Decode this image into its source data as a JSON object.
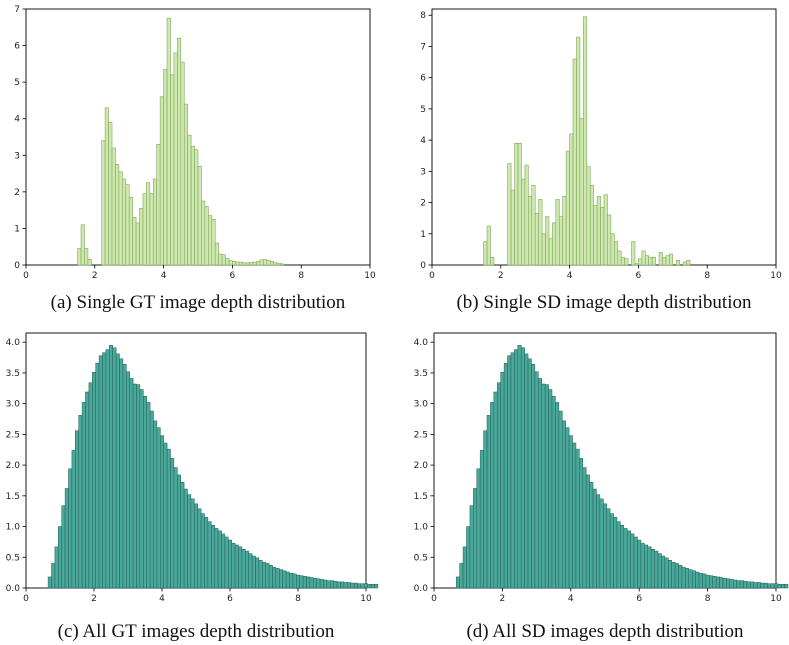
{
  "chart_data": [
    {
      "id": "a",
      "type": "bar",
      "caption": "(a) Single GT image depth distribution",
      "xlim": [
        0,
        10
      ],
      "ylim": [
        0,
        7
      ],
      "xticks": [
        "0",
        "2",
        "4",
        "6",
        "8",
        "10"
      ],
      "yticks": [
        "0",
        "1",
        "2",
        "3",
        "4",
        "5",
        "6",
        "7"
      ],
      "bin_start": 1.5,
      "bin_width": 0.1,
      "values": [
        0.45,
        1.1,
        0.45,
        0.15,
        0,
        0,
        0,
        3.4,
        4.3,
        3.9,
        3.2,
        2.75,
        2.55,
        2.35,
        2.2,
        1.85,
        1.3,
        1.15,
        1.55,
        1.95,
        2.25,
        1.95,
        2.35,
        3.3,
        4.6,
        5.35,
        6.75,
        5.2,
        5.8,
        6.2,
        5.55,
        4.4,
        3.55,
        3.25,
        3.15,
        2.7,
        1.75,
        1.6,
        1.35,
        1.25,
        0.6,
        0.3,
        0.28,
        0.18,
        0.12,
        0.1,
        0.08,
        0.08,
        0.06,
        0.06,
        0.07,
        0.08,
        0.1,
        0.14,
        0.15,
        0.12,
        0.1,
        0.06,
        0.05,
        0.03
      ],
      "color": "#cfe8b0"
    },
    {
      "id": "b",
      "type": "bar",
      "caption": "(b) Single SD image depth distribution",
      "xlim": [
        0,
        10
      ],
      "ylim": [
        0,
        8.2
      ],
      "xticks": [
        "0",
        "2",
        "4",
        "6",
        "8",
        "10"
      ],
      "yticks": [
        "0",
        "1",
        "2",
        "3",
        "4",
        "5",
        "6",
        "7",
        "8"
      ],
      "bin_start": 1.5,
      "bin_width": 0.1,
      "values": [
        0.75,
        1.25,
        0.25,
        0,
        0,
        0,
        0,
        3.25,
        2.4,
        3.9,
        3.9,
        2.75,
        3.2,
        2.2,
        2.55,
        1.65,
        2.1,
        1.0,
        1.55,
        0.85,
        1.35,
        2.1,
        1.55,
        2.2,
        3.65,
        4.2,
        6.6,
        7.3,
        4.7,
        7.95,
        3.15,
        2.55,
        1.9,
        2.2,
        1.85,
        2.25,
        1.6,
        1.0,
        0.75,
        0.45,
        0.25,
        0.2,
        0,
        0.75,
        0.05,
        0.2,
        0.45,
        0.3,
        0.25,
        0.25,
        0,
        0.4,
        0.25,
        0.3,
        0.35,
        0,
        0.15,
        0,
        0.1,
        0.15
      ],
      "color": "#cfe8b0"
    },
    {
      "id": "c",
      "type": "bar",
      "caption": "(c) All GT images depth distribution",
      "xlim": [
        0,
        10
      ],
      "ylim": [
        0,
        4.15
      ],
      "xticks": [
        "0",
        "2",
        "4",
        "6",
        "8",
        "10"
      ],
      "yticks": [
        "0.0",
        "0.5",
        "1.0",
        "1.5",
        "2.0",
        "2.5",
        "3.0",
        "3.5",
        "4.0"
      ],
      "bin_start": 0.65,
      "bin_width": 0.1,
      "values": [
        0.18,
        0.4,
        0.67,
        1.0,
        1.34,
        1.62,
        1.94,
        2.24,
        2.56,
        2.81,
        3.02,
        3.19,
        3.34,
        3.51,
        3.66,
        3.78,
        3.83,
        3.88,
        3.95,
        3.91,
        3.81,
        3.73,
        3.64,
        3.52,
        3.41,
        3.32,
        3.31,
        3.23,
        3.12,
        3.02,
        2.88,
        2.72,
        2.61,
        2.48,
        2.36,
        2.26,
        2.11,
        1.96,
        1.84,
        1.72,
        1.61,
        1.52,
        1.45,
        1.37,
        1.29,
        1.21,
        1.15,
        1.08,
        1.02,
        0.97,
        0.93,
        0.88,
        0.83,
        0.78,
        0.73,
        0.7,
        0.67,
        0.63,
        0.6,
        0.56,
        0.52,
        0.49,
        0.45,
        0.42,
        0.4,
        0.37,
        0.34,
        0.32,
        0.3,
        0.28,
        0.26,
        0.24,
        0.23,
        0.21,
        0.2,
        0.19,
        0.18,
        0.17,
        0.16,
        0.15,
        0.14,
        0.13,
        0.12,
        0.12,
        0.11,
        0.1,
        0.1,
        0.09,
        0.09,
        0.08,
        0.08,
        0.07,
        0.07,
        0.07,
        0.06,
        0.06,
        0.06
      ],
      "color": "#4aa89a"
    },
    {
      "id": "d",
      "type": "bar",
      "caption": "(d) All SD images depth distribution",
      "xlim": [
        0,
        10
      ],
      "ylim": [
        0,
        4.15
      ],
      "xticks": [
        "0",
        "2",
        "4",
        "6",
        "8",
        "10"
      ],
      "yticks": [
        "0.0",
        "0.5",
        "1.0",
        "1.5",
        "2.0",
        "2.5",
        "3.0",
        "3.5",
        "4.0"
      ],
      "bin_start": 0.65,
      "bin_width": 0.1,
      "values": [
        0.18,
        0.4,
        0.67,
        1.0,
        1.34,
        1.62,
        1.94,
        2.24,
        2.56,
        2.81,
        3.02,
        3.19,
        3.34,
        3.51,
        3.66,
        3.78,
        3.83,
        3.88,
        3.95,
        3.91,
        3.81,
        3.73,
        3.64,
        3.52,
        3.41,
        3.32,
        3.31,
        3.23,
        3.12,
        3.02,
        2.88,
        2.72,
        2.61,
        2.48,
        2.36,
        2.26,
        2.11,
        1.96,
        1.84,
        1.72,
        1.61,
        1.52,
        1.45,
        1.37,
        1.29,
        1.21,
        1.15,
        1.08,
        1.02,
        0.97,
        0.93,
        0.88,
        0.83,
        0.78,
        0.73,
        0.7,
        0.67,
        0.63,
        0.6,
        0.56,
        0.52,
        0.49,
        0.45,
        0.42,
        0.4,
        0.37,
        0.34,
        0.32,
        0.3,
        0.28,
        0.26,
        0.24,
        0.23,
        0.21,
        0.2,
        0.19,
        0.18,
        0.17,
        0.16,
        0.15,
        0.14,
        0.13,
        0.12,
        0.12,
        0.11,
        0.1,
        0.1,
        0.09,
        0.09,
        0.08,
        0.08,
        0.07,
        0.07,
        0.07,
        0.06,
        0.06,
        0.06
      ],
      "color": "#4aa89a"
    }
  ]
}
